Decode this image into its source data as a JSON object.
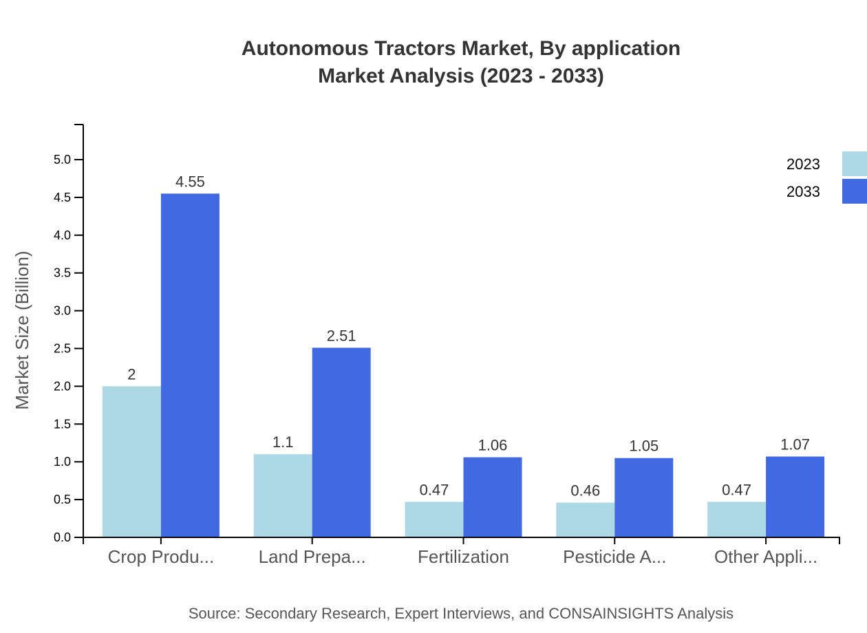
{
  "chart_data": {
    "type": "bar",
    "title": "Autonomous Tractors Market, By application",
    "subtitle": "Market Analysis (2023 - 2033)",
    "xlabel": "",
    "ylabel": "Market Size (Billion)",
    "categories": [
      "Crop Produ...",
      "Land Prepa...",
      "Fertilization",
      "Pesticide A...",
      "Other Appli..."
    ],
    "series": [
      {
        "name": "2023",
        "color": "#add8e6",
        "values": [
          2,
          1.1,
          0.47,
          0.46,
          0.47
        ],
        "labels": [
          "2",
          "1.1",
          "0.47",
          "0.46",
          "0.47"
        ]
      },
      {
        "name": "2033",
        "color": "#4169e1",
        "values": [
          4.55,
          2.51,
          1.06,
          1.05,
          1.07
        ],
        "labels": [
          "4.55",
          "2.51",
          "1.06",
          "1.05",
          "1.07"
        ]
      }
    ],
    "ylim": [
      0,
      5.45
    ],
    "yticks": [
      "0.0",
      "0.5",
      "1.0",
      "1.5",
      "2.0",
      "2.5",
      "3.0",
      "3.5",
      "4.0",
      "4.5",
      "5.0"
    ],
    "grid": false,
    "legend_position": "top-right",
    "source": "Source: Secondary Research, Expert Interviews, and CONSAINSIGHTS Analysis"
  }
}
